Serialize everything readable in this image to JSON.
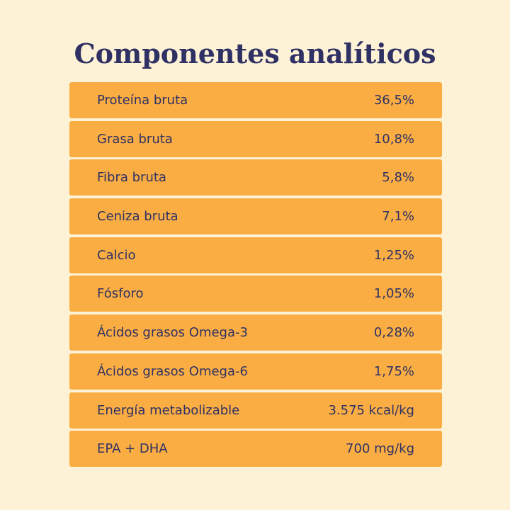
{
  "title": "Componentes analíticos",
  "rows": [
    {
      "label": "Proteína bruta",
      "value": "36,5%"
    },
    {
      "label": "Grasa bruta",
      "value": "10,8%"
    },
    {
      "label": "Fibra bruta",
      "value": "5,8%"
    },
    {
      "label": "Ceniza bruta",
      "value": "7,1%"
    },
    {
      "label": "Calcio",
      "value": "1,25%"
    },
    {
      "label": "Fósforo",
      "value": "1,05%"
    },
    {
      "label": "Ácidos grasos Omega-3",
      "value": "0,28%"
    },
    {
      "label": "Ácidos grasos Omega-6",
      "value": "1,75%"
    },
    {
      "label": "Energía metabolizable",
      "value": "3.575 kcal/kg"
    },
    {
      "label": "EPA + DHA",
      "value": "700 mg/kg"
    }
  ],
  "colors": {
    "background": "#fdf1d6",
    "row": "#f9ad43",
    "text": "#2f3164"
  }
}
